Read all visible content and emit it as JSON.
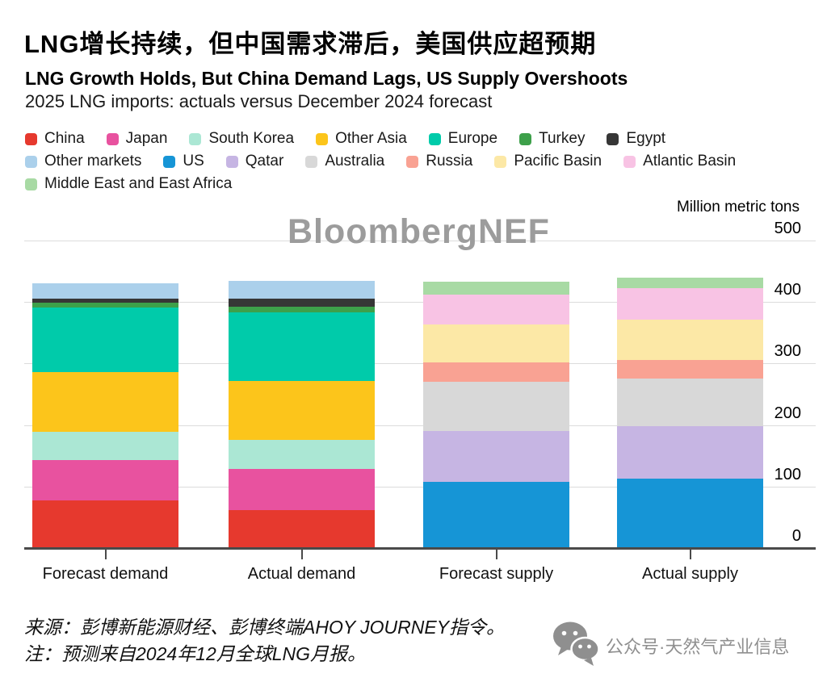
{
  "header": {
    "title_zh": "LNG增长持续，但中国需求滞后，美国供应超预期",
    "title_en": "LNG Growth Holds, But China Demand Lags, US Supply Overshoots",
    "subtitle": "2025 LNG imports: actuals versus December 2024 forecast"
  },
  "watermark_text": "BloombergNEF",
  "footer": {
    "source_line": "来源：彭博新能源财经、彭博终端AHOY JOURNEY指令。",
    "note_line": "注：预测来自2024年12月全球LNG月报。",
    "wechat_label": "公众号·天然气产业信息"
  },
  "colors": {
    "grid": "#dcdcdc",
    "axis": "#4a4a4a",
    "watermark_gray": "#9c9c9c",
    "wechat_gray": "#8f8f8f"
  },
  "chart_data": {
    "type": "bar",
    "stacked": true,
    "title": "LNG Growth Holds, But China Demand Lags, US Supply Overshoots",
    "subtitle": "2025 LNG imports: actuals versus December 2024 forecast",
    "unit_label": "Million metric tons",
    "ylabel": "Million metric tons",
    "xlabel": "",
    "ylim": [
      0,
      500
    ],
    "yticks": [
      0,
      100,
      200,
      300,
      400,
      500
    ],
    "grid": true,
    "legend_position": "top",
    "categories": [
      "Forecast demand",
      "Actual demand",
      "Forecast supply",
      "Actual supply"
    ],
    "series": [
      {
        "name": "China",
        "color": "#e6392e",
        "values": [
          77,
          62,
          0,
          0
        ]
      },
      {
        "name": "Japan",
        "color": "#e8529f",
        "values": [
          66,
          66,
          0,
          0
        ]
      },
      {
        "name": "South Korea",
        "color": "#abe7d4",
        "values": [
          46,
          48,
          0,
          0
        ]
      },
      {
        "name": "Other Asia",
        "color": "#fcc51b",
        "values": [
          97,
          95,
          0,
          0
        ]
      },
      {
        "name": "Europe",
        "color": "#00cbaa",
        "values": [
          105,
          112,
          0,
          0
        ]
      },
      {
        "name": "Turkey",
        "color": "#3da04a",
        "values": [
          8,
          10,
          0,
          0
        ]
      },
      {
        "name": "Egypt",
        "color": "#363636",
        "values": [
          6,
          13,
          0,
          0
        ]
      },
      {
        "name": "Other markets",
        "color": "#abd0eb",
        "values": [
          25,
          29,
          0,
          0
        ]
      },
      {
        "name": "US",
        "color": "#1695d6",
        "values": [
          0,
          0,
          108,
          113
        ]
      },
      {
        "name": "Qatar",
        "color": "#c6b5e3",
        "values": [
          0,
          0,
          82,
          85
        ]
      },
      {
        "name": "Australia",
        "color": "#d8d8d8",
        "values": [
          0,
          0,
          80,
          78
        ]
      },
      {
        "name": "Russia",
        "color": "#f9a293",
        "values": [
          0,
          0,
          32,
          30
        ]
      },
      {
        "name": "Pacific Basin",
        "color": "#fce8a6",
        "values": [
          0,
          0,
          62,
          65
        ]
      },
      {
        "name": "Atlantic Basin",
        "color": "#f8c3e4",
        "values": [
          0,
          0,
          48,
          51
        ]
      },
      {
        "name": "Middle East and East Africa",
        "color": "#a8daa4",
        "values": [
          0,
          0,
          21,
          18
        ]
      }
    ],
    "legend_rows": [
      [
        "China",
        "Japan",
        "South Korea",
        "Other Asia",
        "Europe",
        "Turkey",
        "Egypt"
      ],
      [
        "Other markets",
        "US",
        "Qatar",
        "Australia",
        "Russia",
        "Pacific Basin",
        "Atlantic Basin"
      ],
      [
        "Middle East and East Africa"
      ]
    ]
  }
}
